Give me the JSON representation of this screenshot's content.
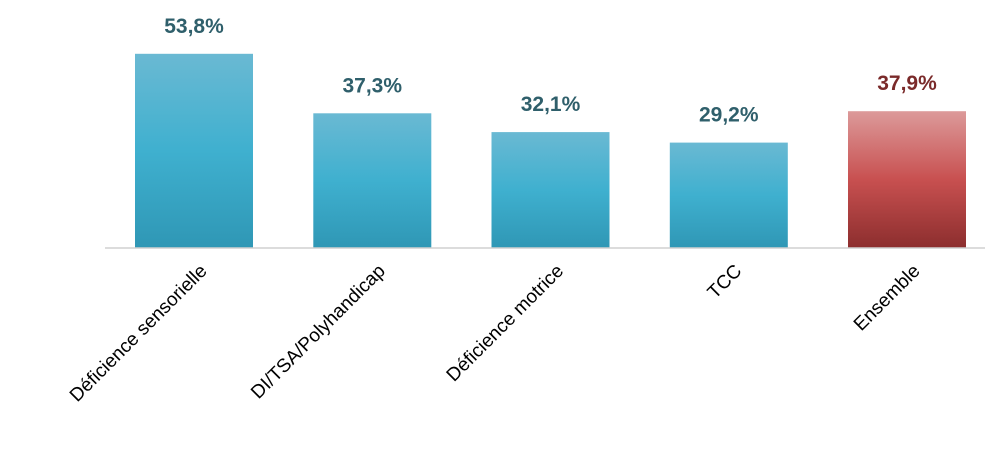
{
  "chart_data": {
    "type": "bar",
    "categories": [
      "Déficience sensorielle",
      "DI/TSA/Polyhandicap",
      "Déficience motrice",
      "TCC",
      "Ensemble"
    ],
    "values": [
      53.8,
      37.3,
      32.1,
      29.2,
      37.9
    ],
    "value_labels": [
      "53,8%",
      "37,3%",
      "32,1%",
      "29,2%",
      "37,9%"
    ],
    "unit": "%",
    "title": "",
    "xlabel": "",
    "ylabel": "",
    "ylim": [
      0,
      60
    ],
    "grid": false,
    "legend": "none",
    "colors": {
      "default_bar_top": "#6ab9d3",
      "default_bar_mid": "#3fb0cf",
      "default_bar_bottom": "#2f97b5",
      "highlight_bar_top": "#dc9a9a",
      "highlight_bar_mid": "#c85050",
      "highlight_bar_bottom": "#8c2e2e",
      "default_label": "#2f5f6b",
      "highlight_label": "#7a2a2a",
      "axis": "#d0d0d0"
    },
    "highlight_index": 4
  }
}
